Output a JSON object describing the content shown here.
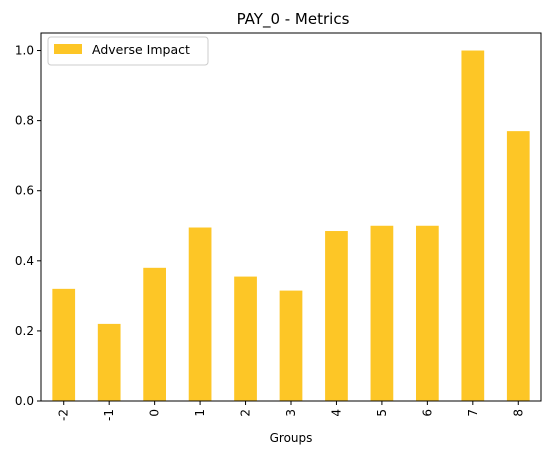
{
  "chart_data": {
    "type": "bar",
    "title": "PAY_0 - Metrics",
    "xlabel": "Groups",
    "ylabel": "",
    "categories": [
      "-2",
      "-1",
      "0",
      "1",
      "2",
      "3",
      "4",
      "5",
      "6",
      "7",
      "8"
    ],
    "series": [
      {
        "name": "Adverse Impact",
        "color": "#fdc626",
        "values": [
          0.32,
          0.22,
          0.38,
          0.495,
          0.355,
          0.315,
          0.485,
          0.5,
          0.5,
          1.0,
          0.77
        ]
      }
    ],
    "ylim": [
      0,
      1.05
    ],
    "yticks": [
      "0.0",
      "0.2",
      "0.4",
      "0.6",
      "0.8",
      "1.0"
    ],
    "grid": false,
    "legend_position": "upper-left",
    "x_tick_rotation": "vertical"
  }
}
